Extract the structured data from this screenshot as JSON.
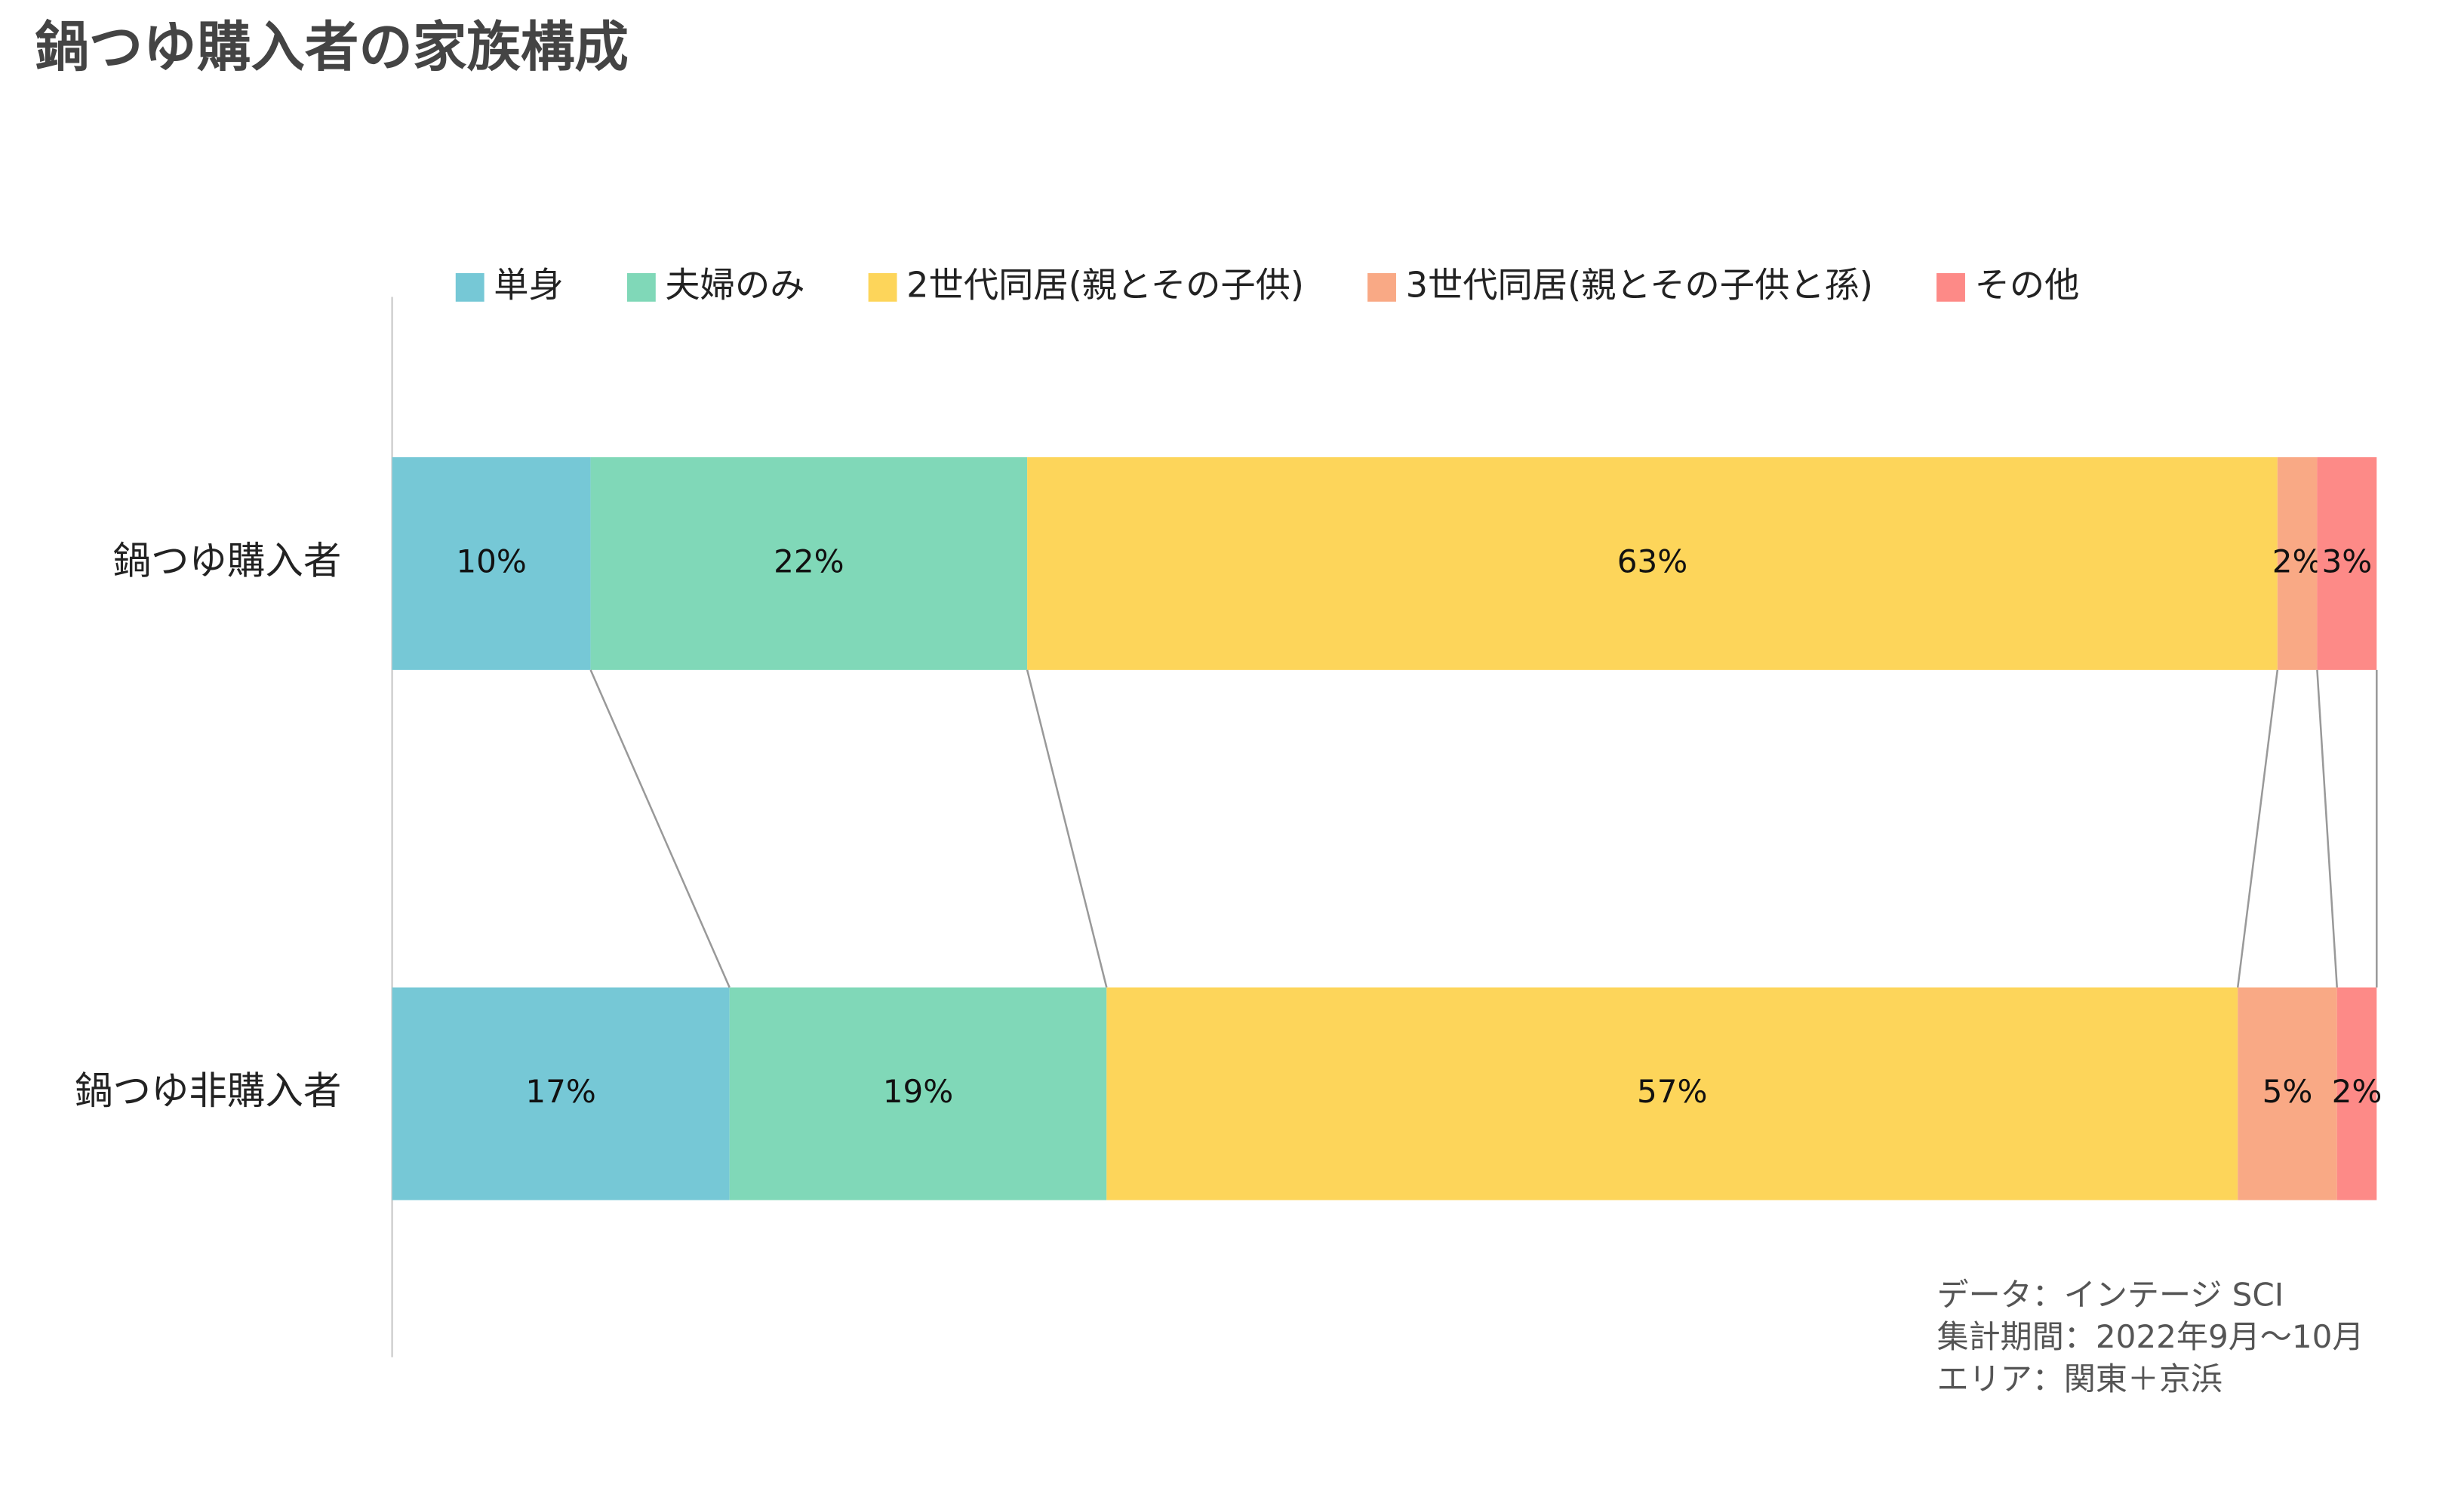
{
  "chart_data": {
    "type": "bar",
    "orientation": "horizontal",
    "stacked": true,
    "title": "鍋つゆ購入者の家族構成",
    "categories": [
      "鍋つゆ購入者",
      "鍋つゆ非購入者"
    ],
    "xlim": [
      0,
      100
    ],
    "legend": "top",
    "series": [
      {
        "name": "単身",
        "color": "#76c8d6",
        "values": [
          10,
          17
        ],
        "value_labels": [
          "10%",
          "17%"
        ]
      },
      {
        "name": "夫婦のみ",
        "color": "#80d8b8",
        "values": [
          22,
          19
        ],
        "value_labels": [
          "22%",
          "19%"
        ]
      },
      {
        "name": "2世代同居(親とその子供)",
        "color": "#fdd55a",
        "values": [
          63,
          57
        ],
        "value_labels": [
          "63%",
          "57%"
        ]
      },
      {
        "name": "3世代同居(親とその子供と孫)",
        "color": "#f9a985",
        "values": [
          2,
          5
        ],
        "value_labels": [
          "2%",
          "5%"
        ]
      },
      {
        "name": "その他",
        "color": "#fd8a87",
        "values": [
          3,
          2
        ],
        "value_labels": [
          "3%",
          "2%"
        ]
      }
    ],
    "notes": [
      "データ：インテージ SCI",
      "集計期間：2022年9月～10月",
      "エリア：関東＋京浜"
    ]
  }
}
